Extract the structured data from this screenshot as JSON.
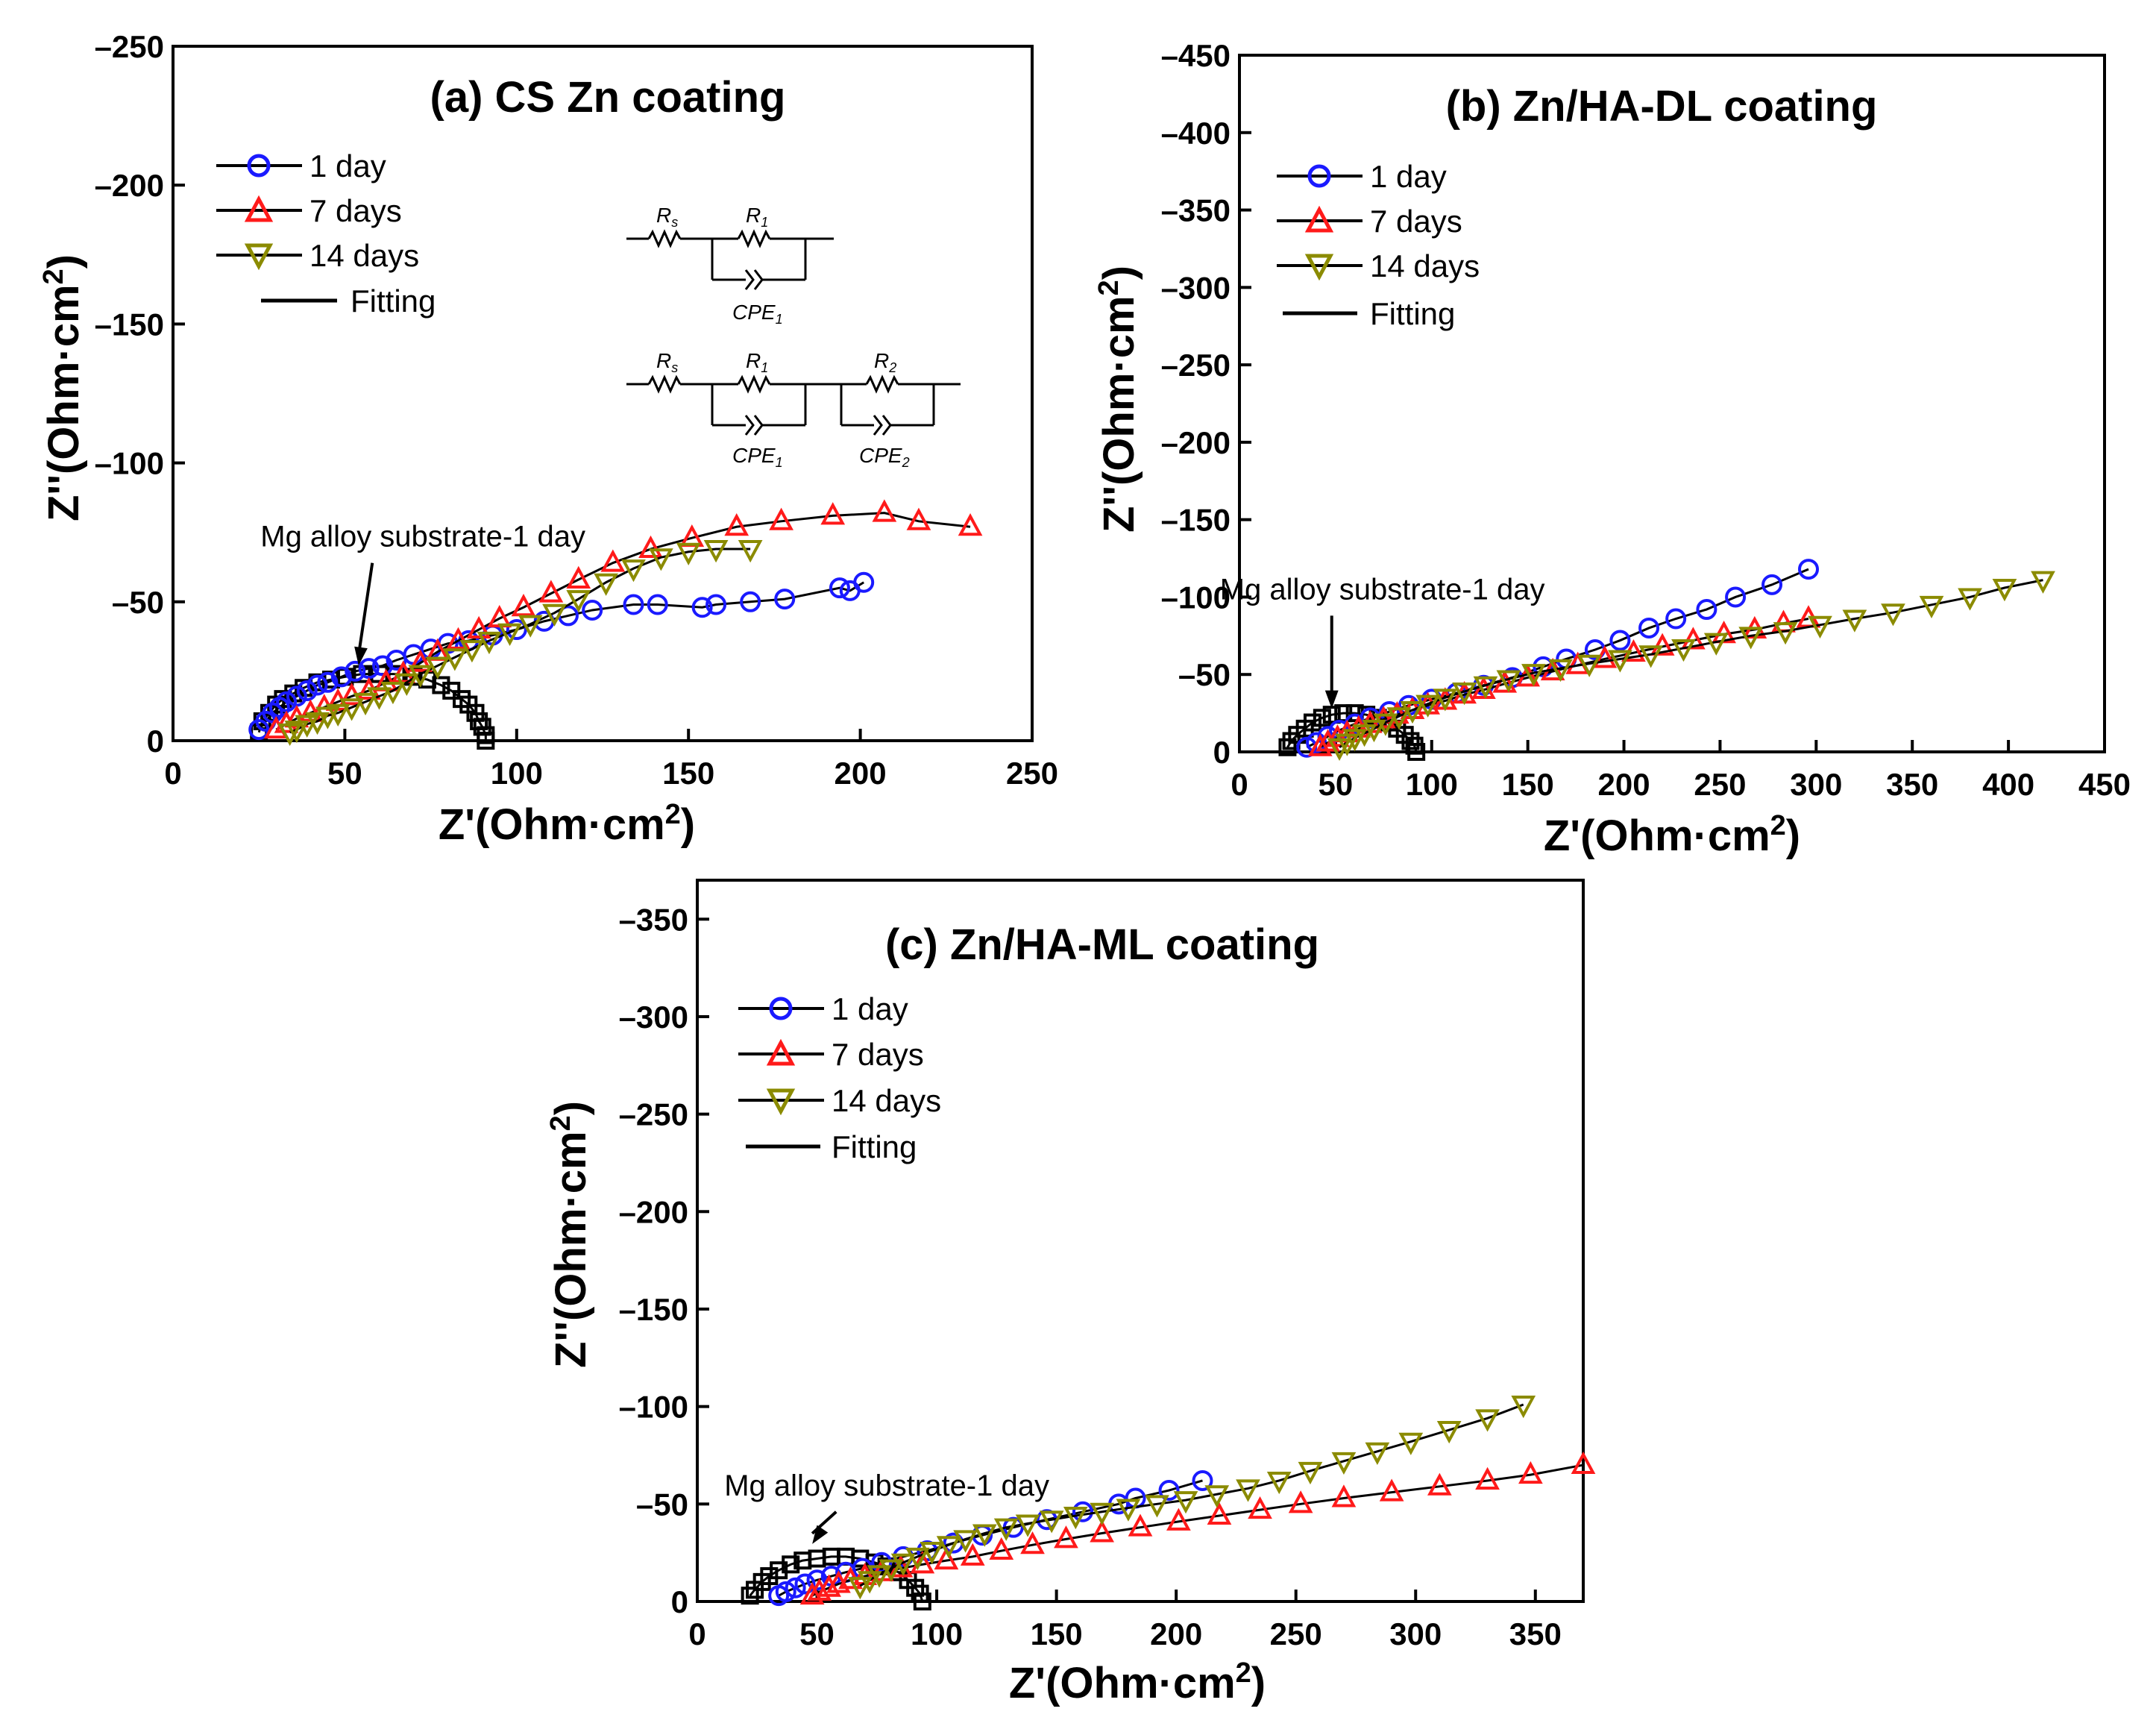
{
  "figure": {
    "description_labels": {
      "minus": "–"
    }
  },
  "chart_data": [
    {
      "id": "a",
      "type": "scatter",
      "title": "(a) CS Zn coating",
      "xlabel": "Z'(Ohm·cm",
      "ylabel": "Z''(Ohm·cm",
      "label_superscript": "2",
      "label_close": ")",
      "xlim": [
        0,
        250
      ],
      "ylim": [
        0,
        -250
      ],
      "xticks": [
        0,
        50,
        100,
        150,
        200,
        250
      ],
      "yticks": [
        0,
        -50,
        -100,
        -150,
        -200,
        -250
      ],
      "annotation": "Mg alloy substrate-1 day",
      "annotation_target": {
        "x": 54,
        "y": -26
      },
      "annotation_origin": {
        "x": 58,
        "y": -64
      },
      "legend": [
        "1 day",
        "7 days",
        "14 days",
        "Fitting"
      ],
      "circuit": {
        "simple": {
          "r1": "R",
          "r1_sub": "s",
          "r2": "R",
          "r2_sub": "1",
          "c1": "CPE",
          "c1_sub": "1"
        },
        "double": {
          "r1": "R",
          "r1_sub": "s",
          "r2": "R",
          "r2_sub": "1",
          "r3": "R",
          "r3_sub": "2",
          "c1": "CPE",
          "c1_sub": "1",
          "c2": "CPE",
          "c2_sub": "2"
        }
      },
      "series": [
        {
          "name": "Mg alloy substrate-1 day",
          "marker": "square",
          "color": "#000000",
          "x": [
            25,
            26,
            28,
            30,
            32,
            35,
            38,
            42,
            46,
            50,
            55,
            60,
            65,
            70,
            74,
            78,
            81,
            84,
            86,
            88,
            89,
            90,
            91,
            91
          ],
          "y": [
            -3,
            -7,
            -10,
            -13,
            -15,
            -17,
            -19,
            -21,
            -22,
            -23,
            -24,
            -24,
            -24,
            -23,
            -22,
            -20,
            -18,
            -15,
            -13,
            -10,
            -7,
            -5,
            -2,
            0
          ]
        },
        {
          "name": "1 day",
          "marker": "circle",
          "color": "#1a1aff",
          "x": [
            25,
            27,
            29,
            31,
            33,
            36,
            39,
            42,
            45,
            49,
            53,
            57,
            61,
            65,
            70,
            75,
            80,
            86,
            93,
            100,
            108,
            115,
            122,
            134,
            141,
            154,
            158,
            168,
            178,
            194,
            197,
            201
          ],
          "y": [
            -4,
            -7,
            -10,
            -12,
            -14,
            -16,
            -18,
            -20,
            -21,
            -23,
            -25,
            -26,
            -27,
            -29,
            -31,
            -33,
            -35,
            -36,
            -38,
            -40,
            -43,
            -45,
            -47,
            -49,
            -49,
            -48,
            -49,
            -50,
            -51,
            -55,
            -54,
            -57
          ]
        },
        {
          "name": "7 days",
          "marker": "triangle",
          "color": "#ff1a1a",
          "x": [
            30,
            33,
            36,
            40,
            44,
            48,
            52,
            57,
            62,
            67,
            72,
            77,
            83,
            89,
            95,
            102,
            110,
            118,
            128,
            139,
            151,
            164,
            177,
            192,
            207,
            217,
            232
          ],
          "y": [
            -4,
            -6,
            -8,
            -10,
            -12,
            -14,
            -16,
            -18,
            -21,
            -24,
            -28,
            -32,
            -36,
            -40,
            -44,
            -48,
            -53,
            -58,
            -64,
            -69,
            -73,
            -77,
            -79,
            -81,
            -82,
            -79,
            -77
          ]
        },
        {
          "name": "14 days",
          "marker": "triangle-down",
          "color": "#8b8b00",
          "x": [
            34,
            36,
            39,
            42,
            45,
            48,
            52,
            56,
            60,
            64,
            68,
            72,
            77,
            82,
            87,
            92,
            98,
            104,
            111,
            118,
            126,
            134,
            142,
            150,
            158,
            168
          ],
          "y": [
            -3,
            -4,
            -6,
            -7,
            -9,
            -10,
            -12,
            -14,
            -16,
            -18,
            -21,
            -24,
            -27,
            -30,
            -33,
            -36,
            -39,
            -42,
            -46,
            -51,
            -57,
            -62,
            -66,
            -68,
            -69,
            -69
          ]
        }
      ]
    },
    {
      "id": "b",
      "type": "scatter",
      "title": "(b) Zn/HA-DL coating",
      "xlabel": "Z'(Ohm·cm",
      "ylabel": "Z''(Ohm·cm",
      "label_superscript": "2",
      "label_close": ")",
      "xlim": [
        0,
        450
      ],
      "ylim": [
        0,
        -450
      ],
      "xticks": [
        0,
        50,
        100,
        150,
        200,
        250,
        300,
        350,
        400,
        450
      ],
      "yticks": [
        0,
        -50,
        -100,
        -150,
        -200,
        -250,
        -300,
        -350,
        -400,
        -450
      ],
      "annotation": "Mg alloy substrate-1 day",
      "annotation_target": {
        "x": 48,
        "y": -26
      },
      "annotation_origin": {
        "x": 48,
        "y": -88
      },
      "legend": [
        "1 day",
        "7 days",
        "14 days",
        "Fitting"
      ],
      "series": [
        {
          "name": "Mg alloy substrate-1 day",
          "marker": "square",
          "color": "#000000",
          "x": [
            25,
            27,
            30,
            34,
            38,
            43,
            48,
            54,
            60,
            66,
            72,
            77,
            82,
            86,
            89,
            91,
            92
          ],
          "y": [
            -3,
            -7,
            -11,
            -15,
            -19,
            -22,
            -24,
            -25,
            -25,
            -24,
            -22,
            -19,
            -15,
            -11,
            -7,
            -4,
            0
          ]
        },
        {
          "name": "1 day",
          "marker": "circle",
          "color": "#1a1aff",
          "x": [
            35,
            40,
            46,
            52,
            60,
            68,
            78,
            88,
            100,
            113,
            127,
            142,
            158,
            170,
            185,
            198,
            213,
            227,
            243,
            258,
            277,
            296
          ],
          "y": [
            -3,
            -6,
            -10,
            -14,
            -18,
            -22,
            -26,
            -30,
            -34,
            -38,
            -43,
            -48,
            -55,
            -60,
            -66,
            -72,
            -80,
            -86,
            -92,
            -100,
            -108,
            -118
          ]
        },
        {
          "name": "7 days",
          "marker": "triangle",
          "color": "#ff1a1a",
          "x": [
            42,
            46,
            51,
            56,
            62,
            68,
            75,
            82,
            90,
            98,
            107,
            117,
            127,
            138,
            150,
            163,
            176,
            190,
            205,
            220,
            236,
            252,
            268,
            283,
            296
          ],
          "y": [
            -3,
            -6,
            -9,
            -12,
            -15,
            -18,
            -21,
            -24,
            -27,
            -30,
            -33,
            -37,
            -40,
            -44,
            -48,
            -52,
            -56,
            -60,
            -64,
            -68,
            -72,
            -76,
            -79,
            -83,
            -86
          ]
        },
        {
          "name": "14 days",
          "marker": "triangle-down",
          "color": "#8b8b00",
          "x": [
            52,
            56,
            60,
            65,
            70,
            76,
            83,
            90,
            98,
            107,
            117,
            128,
            140,
            153,
            167,
            182,
            198,
            214,
            231,
            248,
            266,
            284,
            302,
            320,
            340,
            360,
            380,
            398,
            418
          ],
          "y": [
            -3,
            -6,
            -9,
            -12,
            -15,
            -19,
            -23,
            -27,
            -31,
            -35,
            -39,
            -43,
            -47,
            -51,
            -54,
            -57,
            -60,
            -63,
            -67,
            -71,
            -75,
            -78,
            -82,
            -86,
            -90,
            -95,
            -100,
            -106,
            -111
          ]
        }
      ]
    },
    {
      "id": "c",
      "type": "scatter",
      "title": "(c) Zn/HA-ML coating",
      "xlabel": "Z'(Ohm·cm",
      "ylabel": "Z''(Ohm·cm",
      "label_superscript": "2",
      "label_close": ")",
      "xlim": [
        0,
        370
      ],
      "ylim": [
        0,
        -370
      ],
      "xticks": [
        0,
        50,
        100,
        150,
        200,
        250,
        300,
        350
      ],
      "yticks": [
        0,
        -50,
        -100,
        -150,
        -200,
        -250,
        -300,
        -350
      ],
      "annotation": "Mg alloy substrate-1 day",
      "annotation_target": {
        "x": 48,
        "y": -28
      },
      "annotation_origin": {
        "x": 58,
        "y": -46
      },
      "legend": [
        "1 day",
        "7 days",
        "14 days",
        "Fitting"
      ],
      "series": [
        {
          "name": "Mg alloy substrate-1 day",
          "marker": "square",
          "color": "#000000",
          "x": [
            22,
            24,
            27,
            30,
            34,
            39,
            44,
            50,
            56,
            62,
            68,
            74,
            79,
            84,
            88,
            91,
            93,
            94
          ],
          "y": [
            -3,
            -6,
            -10,
            -13,
            -16,
            -19,
            -21,
            -22,
            -23,
            -23,
            -22,
            -20,
            -18,
            -15,
            -11,
            -7,
            -4,
            0
          ]
        },
        {
          "name": "1 day",
          "marker": "circle",
          "color": "#1a1aff",
          "x": [
            34,
            37,
            41,
            45,
            50,
            56,
            62,
            69,
            77,
            86,
            96,
            107,
            119,
            132,
            146,
            161,
            176,
            183,
            197,
            211
          ],
          "y": [
            -3,
            -5,
            -7,
            -9,
            -11,
            -13,
            -15,
            -17,
            -20,
            -23,
            -26,
            -30,
            -34,
            -38,
            -42,
            -46,
            -50,
            -53,
            -57,
            -62
          ]
        },
        {
          "name": "7 days",
          "marker": "triangle",
          "color": "#ff1a1a",
          "x": [
            48,
            51,
            55,
            59,
            64,
            70,
            77,
            85,
            94,
            104,
            115,
            127,
            140,
            154,
            169,
            185,
            201,
            218,
            235,
            252,
            270,
            290,
            310,
            330,
            348,
            370
          ],
          "y": [
            -3,
            -5,
            -7,
            -9,
            -11,
            -13,
            -15,
            -17,
            -19,
            -21,
            -23,
            -26,
            -29,
            -32,
            -35,
            -38,
            -41,
            -44,
            -47,
            -50,
            -53,
            -56,
            -59,
            -62,
            -65,
            -70
          ]
        },
        {
          "name": "14 days",
          "marker": "triangle-down",
          "color": "#8b8b00",
          "x": [
            68,
            72,
            76,
            81,
            86,
            92,
            98,
            105,
            112,
            120,
            129,
            138,
            148,
            158,
            169,
            180,
            192,
            204,
            217,
            230,
            243,
            256,
            270,
            284,
            298,
            314,
            330,
            345
          ],
          "y": [
            -8,
            -11,
            -14,
            -17,
            -20,
            -23,
            -26,
            -29,
            -32,
            -35,
            -38,
            -40,
            -42,
            -44,
            -46,
            -48,
            -50,
            -52,
            -55,
            -58,
            -62,
            -67,
            -72,
            -77,
            -82,
            -88,
            -94,
            -101
          ]
        }
      ]
    }
  ]
}
